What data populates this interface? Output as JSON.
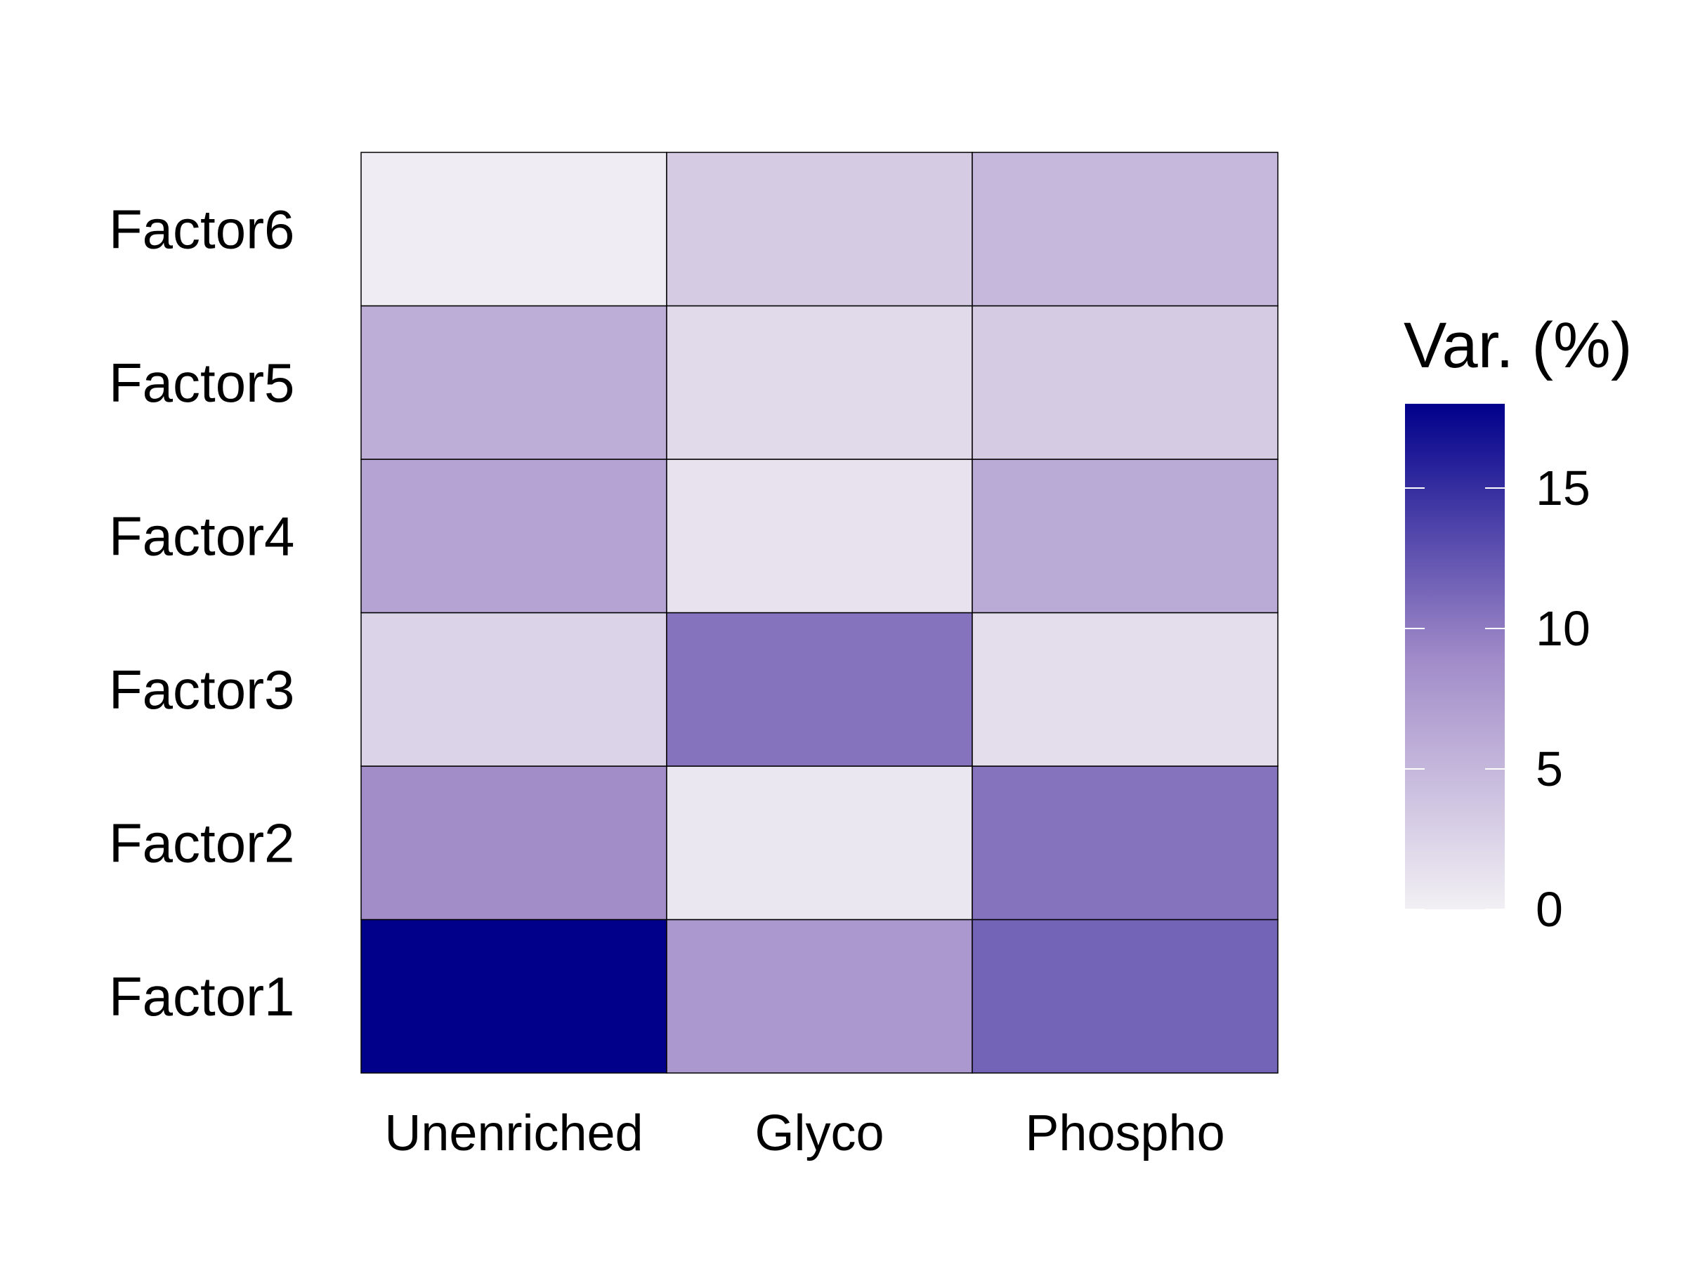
{
  "chart_data": {
    "type": "heatmap",
    "columns": [
      "Unenriched",
      "Glyco",
      "Phospho"
    ],
    "rows": [
      "Factor1",
      "Factor2",
      "Factor3",
      "Factor4",
      "Factor5",
      "Factor6"
    ],
    "values": [
      [
        18.0,
        7.8,
        11.5
      ],
      [
        8.7,
        0.8,
        10.5
      ],
      [
        2.5,
        10.5,
        1.7
      ],
      [
        6.7,
        1.2,
        6.2
      ],
      [
        5.8,
        1.9,
        3.2
      ],
      [
        0.3,
        3.2,
        4.9
      ]
    ],
    "legend": {
      "title": "Var. (%)",
      "ticks": [
        0,
        5,
        10,
        15
      ],
      "range": [
        0,
        18
      ],
      "low_color": "#F2F0F4",
      "mid_color": "#A08AC8",
      "high_color": "#00008B"
    },
    "title": "",
    "xlabel": "",
    "ylabel": ""
  }
}
